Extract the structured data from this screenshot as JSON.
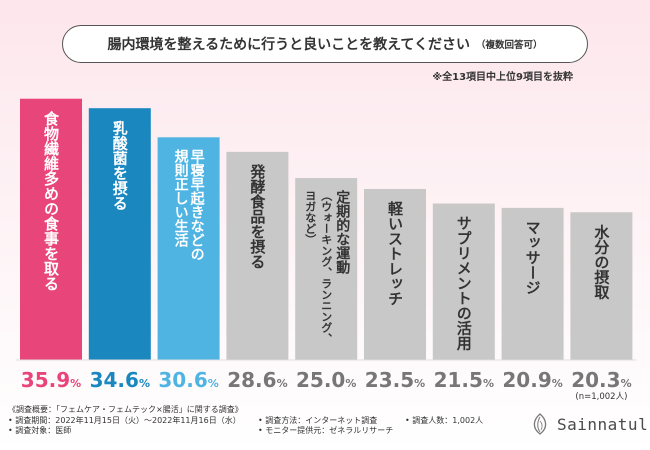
{
  "title": "腸内環境を整えるために行うと良いことを教えてください",
  "title_suffix": "（複数回答可）",
  "note": "※全13項目中上位9項目を抜粋",
  "chart_data": {
    "type": "bar",
    "categories": [
      "食物繊維多めの食事を取る",
      "乳酸菌を摂る",
      "早寝早起きなどの規則正しい生活",
      "発酵食品を摂る",
      "定期的な運動（ウォーキング、ランニング、ヨガなど）",
      "軽いストレッチ",
      "サプリメントの活用",
      "マッサージ",
      "水分の摂取"
    ],
    "category_lines": [
      [
        "食物繊維多めの食事を取る"
      ],
      [
        "乳酸菌を摂る"
      ],
      [
        "早寝早起きなどの",
        "規則正しい生活"
      ],
      [
        "発酵食品を摂る"
      ],
      [
        "定期的な運動",
        "（ウォーキング、ランニング、",
        "ヨガなど）"
      ],
      [
        "軽いストレッチ"
      ],
      [
        "サプリメントの活用"
      ],
      [
        "マッサージ"
      ],
      [
        "水分の摂取"
      ]
    ],
    "values": [
      35.9,
      34.6,
      30.6,
      28.6,
      25.0,
      23.5,
      21.5,
      20.9,
      20.3
    ],
    "value_labels": [
      "35.9",
      "34.6",
      "30.6",
      "28.6",
      "25.0",
      "23.5",
      "21.5",
      "20.9",
      "20.3"
    ],
    "unit": "%",
    "colors": [
      "#e8457b",
      "#1a87bf",
      "#4fb4e2",
      "#c8c8c8",
      "#c8c8c8",
      "#c8c8c8",
      "#c8c8c8",
      "#c8c8c8",
      "#c8c8c8"
    ],
    "label_colors": [
      "#e8457b",
      "#1a87bf",
      "#4fb4e2",
      "#777777",
      "#777777",
      "#777777",
      "#777777",
      "#777777",
      "#777777"
    ],
    "text_colors": [
      "#ffffff",
      "#ffffff",
      "#ffffff",
      "#333333",
      "#333333",
      "#333333",
      "#333333",
      "#333333",
      "#333333"
    ],
    "n_label": "(n=1,002人)",
    "ylim": [
      0,
      36
    ]
  },
  "footer": {
    "heading": "《調査概要：「フェムケア・フェムテック×腸活」に関する調査》",
    "period": "• 調査期間：2022年11月15日（火）～2022年11月16日（水）",
    "target": "• 調査対象：医師",
    "method": "• 調査方法：インターネット調査",
    "provider": "• モニター提供元：ゼネラルリサーチ",
    "count": "• 調査人数：1,002人"
  },
  "brand": "Sainnatul"
}
